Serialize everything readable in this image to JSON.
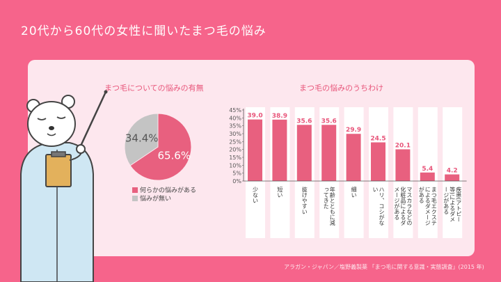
{
  "title": "20代から60代の女性に聞いたまつ毛の悩み",
  "source": "アラガン・ジャパン／塩野義製薬 「まつ毛に関する意識・実態調査」(2015 年)",
  "colors": {
    "accent": "#e8607f",
    "gray": "#c4c4c4",
    "background": "#f6648b",
    "card": "#fde7ee"
  },
  "chart_data": [
    {
      "type": "pie",
      "title": "まつ毛についての悩みの有無",
      "labels": [
        "何らかの悩みがある",
        "悩みが無い"
      ],
      "display_values": [
        "65.6%",
        "34.4%"
      ],
      "values": [
        65.6,
        34.4
      ],
      "colors": [
        "#e8607f",
        "#c4c4c4"
      ],
      "legend": "bottom"
    },
    {
      "type": "bar",
      "title": "まつ毛の悩みのうちわけ",
      "categories": [
        "少ない",
        "短い",
        "抜けやすい",
        "年齢とともに減ってきた",
        "細い",
        "ハリ、コシがない",
        "マスカラなどの化粧品によるダメージがある",
        "まつ毛エクステによるダメージがある",
        "疾患(アトピー等)によるダメージがある"
      ],
      "values": [
        39.0,
        38.9,
        35.6,
        35.6,
        29.9,
        24.5,
        20.1,
        5.4,
        4.2
      ],
      "value_labels": [
        "39.0",
        "38.9",
        "35.6",
        "35.6",
        "29.9",
        "24.5",
        "20.1",
        "5.4",
        "4.2"
      ],
      "ylim": [
        0,
        45
      ],
      "yticks": [
        "0%",
        "5%",
        "10%",
        "15%",
        "20%",
        "25%",
        "30%",
        "35%",
        "40%",
        "45%"
      ],
      "grid": false
    }
  ]
}
